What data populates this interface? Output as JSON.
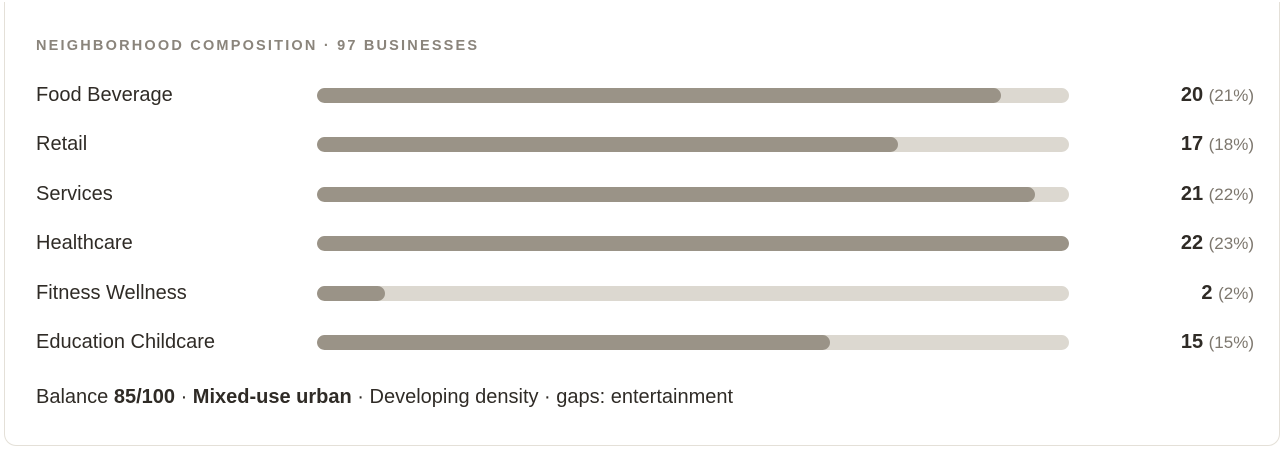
{
  "header": {
    "title": "NEIGHBORHOOD COMPOSITION · 97 BUSINESSES"
  },
  "chart_data": {
    "type": "bar",
    "orientation": "horizontal",
    "categories": [
      "Food Beverage",
      "Retail",
      "Services",
      "Healthcare",
      "Fitness Wellness",
      "Education Childcare"
    ],
    "values": [
      20,
      17,
      21,
      22,
      2,
      15
    ],
    "percent_labels": [
      "(21%)",
      "(18%)",
      "(22%)",
      "(23%)",
      "(2%)",
      "(15%)"
    ],
    "xlim": [
      0,
      22
    ],
    "colors": {
      "fill": "#9a9387",
      "track": "#dcd8d0"
    }
  },
  "footer": {
    "balance_label": "Balance",
    "balance_score": "85/100",
    "sep1": " · ",
    "profile": "Mixed-use urban",
    "sep2": " · ",
    "rest": "Developing density · gaps: entertainment"
  }
}
